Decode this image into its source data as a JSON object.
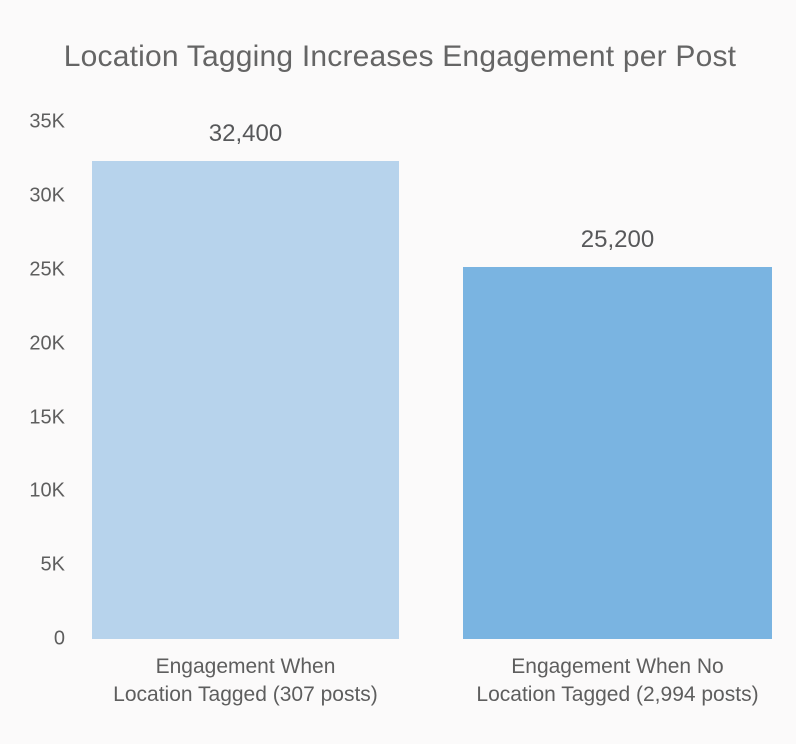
{
  "title": "Location Tagging Increases Engagement per Post",
  "colors": {
    "background": "#fbfafa",
    "title_text": "#656565",
    "axis_text": "#5e5e5e",
    "value_text": "#57585a",
    "bar_location_tagged": "#b7d3ec",
    "bar_no_location_tagged": "#7ab4e1"
  },
  "chart_data": {
    "type": "bar",
    "title": "Location Tagging Increases Engagement per Post",
    "categories": [
      [
        "Engagement When",
        "Location Tagged (307 posts)"
      ],
      [
        "Engagement When No",
        "Location Tagged (2,994 posts)"
      ]
    ],
    "values": [
      32400,
      25200
    ],
    "data_labels": [
      "32,400",
      "25,200"
    ],
    "bar_colors": [
      "#b7d3ec",
      "#7ab4e1"
    ],
    "ylim": [
      0,
      35000
    ],
    "yticks": [
      {
        "value": 0,
        "label": "0"
      },
      {
        "value": 5000,
        "label": "5K"
      },
      {
        "value": 10000,
        "label": "10K"
      },
      {
        "value": 15000,
        "label": "15K"
      },
      {
        "value": 20000,
        "label": "20K"
      },
      {
        "value": 25000,
        "label": "25K"
      },
      {
        "value": 30000,
        "label": "30K"
      },
      {
        "value": 35000,
        "label": "35K"
      }
    ],
    "xlabel": "",
    "ylabel": "",
    "grid": false,
    "legend": "none"
  }
}
